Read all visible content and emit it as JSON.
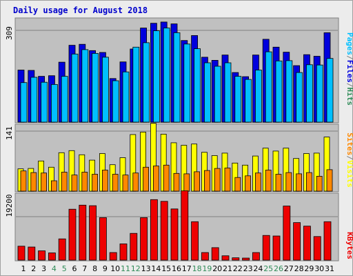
{
  "colors": {
    "background": "#ececec",
    "panel": "#c0c0c0",
    "grid": "#808080",
    "title": "#0000cc",
    "weekday_label": "#000000",
    "weekend_label": "#2e8b57",
    "pages": "#0000dd",
    "files": "#1e90ff",
    "hits": "#00bfff",
    "visits": "#ffff00",
    "sites": "#ff8800",
    "kbytes": "#ee0000"
  },
  "chart_data": [
    {
      "type": "bar",
      "title": "Daily usage for August 2018",
      "panel": "hits",
      "x": [
        1,
        2,
        3,
        4,
        5,
        6,
        7,
        8,
        9,
        10,
        11,
        12,
        13,
        14,
        15,
        16,
        17,
        18,
        19,
        20,
        21,
        22,
        23,
        24,
        25,
        26,
        27,
        28,
        29,
        30,
        31
      ],
      "weekend_days": [
        4,
        5,
        11,
        12,
        18,
        19,
        25,
        26
      ],
      "ytick": "309",
      "ylim": [
        0,
        332
      ],
      "legend": [
        {
          "label": "Pages",
          "color_key": "hits"
        },
        {
          "label": "/",
          "color_key": "grid"
        },
        {
          "label": "Files",
          "color_key": "pages"
        },
        {
          "label": "/",
          "color_key": "grid"
        },
        {
          "label": "Hits",
          "color_key": "weekend_label"
        }
      ],
      "series": [
        {
          "name": "Hits",
          "color_key": "pages",
          "values": [
            166,
            165,
            146,
            148,
            191,
            245,
            248,
            228,
            222,
            139,
            192,
            233,
            300,
            315,
            319,
            313,
            260,
            276,
            207,
            197,
            214,
            158,
            145,
            214,
            264,
            239,
            223,
            180,
            215,
            210,
            285
          ]
        },
        {
          "name": "Files",
          "color_key": "hits",
          "values": [
            126,
            143,
            127,
            120,
            146,
            217,
            231,
            219,
            207,
            132,
            160,
            239,
            253,
            291,
            300,
            285,
            249,
            234,
            189,
            178,
            189,
            146,
            136,
            166,
            224,
            195,
            196,
            158,
            183,
            182,
            203
          ]
        }
      ]
    },
    {
      "type": "bar",
      "panel": "visits",
      "x": [
        1,
        2,
        3,
        4,
        5,
        6,
        7,
        8,
        9,
        10,
        11,
        12,
        13,
        14,
        15,
        16,
        17,
        18,
        19,
        20,
        21,
        22,
        23,
        24,
        25,
        26,
        27,
        28,
        29,
        30,
        31
      ],
      "ytick": "141",
      "ylim": [
        0,
        162
      ],
      "legend": [
        {
          "label": "Sites",
          "color_key": "sites"
        },
        {
          "label": "/",
          "color_key": "grid"
        },
        {
          "label": "Visits",
          "color_key": "visits"
        }
      ],
      "series": [
        {
          "name": "Visits",
          "color_key": "visits",
          "values": [
            54,
            55,
            73,
            58,
            93,
            98,
            88,
            75,
            91,
            64,
            81,
            137,
            143,
            164,
            138,
            117,
            111,
            114,
            94,
            86,
            92,
            68,
            63,
            85,
            104,
            97,
            104,
            79,
            91,
            92,
            131
          ]
        },
        {
          "name": "Sites",
          "color_key": "sites",
          "values": [
            49,
            45,
            44,
            25,
            46,
            39,
            46,
            41,
            51,
            41,
            39,
            44,
            58,
            61,
            63,
            43,
            42,
            47,
            50,
            55,
            56,
            33,
            37,
            44,
            51,
            41,
            45,
            42,
            45,
            36,
            52
          ]
        }
      ]
    },
    {
      "type": "bar",
      "panel": "kbytes",
      "x": [
        1,
        2,
        3,
        4,
        5,
        6,
        7,
        8,
        9,
        10,
        11,
        12,
        13,
        14,
        15,
        16,
        17,
        18,
        19,
        20,
        21,
        22,
        23,
        24,
        25,
        26,
        27,
        28,
        29,
        30,
        31
      ],
      "ytick": "19200",
      "ylim": [
        0,
        23000
      ],
      "legend": [
        {
          "label": "KBytes",
          "color_key": "kbytes"
        }
      ],
      "series": [
        {
          "name": "KBytes",
          "color_key": "kbytes",
          "values": [
            4800,
            4500,
            3200,
            2500,
            7300,
            17500,
            18900,
            18700,
            14600,
            2600,
            5600,
            9200,
            14600,
            20800,
            20200,
            17600,
            23800,
            13200,
            2600,
            4300,
            1500,
            800,
            700,
            2600,
            8500,
            8300,
            18600,
            12900,
            11700,
            8100,
            13200
          ]
        }
      ]
    }
  ]
}
